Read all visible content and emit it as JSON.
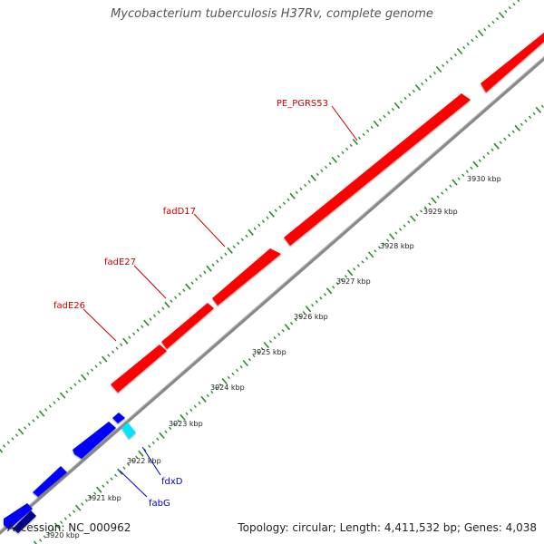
{
  "title": "Mycobacterium tuberculosis H37Rv, complete genome",
  "footer": {
    "accession": "Accession: NC_000962",
    "summary": "Topology: circular; Length: 4,411,532 bp; Genes: 4,038"
  },
  "colors": {
    "forward_strand": "#ff0000",
    "reverse_strand": "#0000ff",
    "reverse_strand_dark": "#000088",
    "other_feature": "#00e5ff",
    "backbone": "#888888",
    "tick": "#2a8a2a",
    "forward_label": "#cc0000",
    "reverse_label": "#0000cc"
  },
  "scale_labels": [
    "3920 kbp",
    "3921 kbp",
    "3922 kbp",
    "3923 kbp",
    "3924 kbp",
    "3925 kbp",
    "3926 kbp",
    "3927 kbp",
    "3928 kbp",
    "3929 kbp",
    "3930 kbp"
  ],
  "gene_labels": {
    "forward": [
      "fadE26",
      "fadE27",
      "fadD17",
      "PE_PGRS53"
    ],
    "reverse": [
      "fabG",
      "fdxD"
    ]
  }
}
